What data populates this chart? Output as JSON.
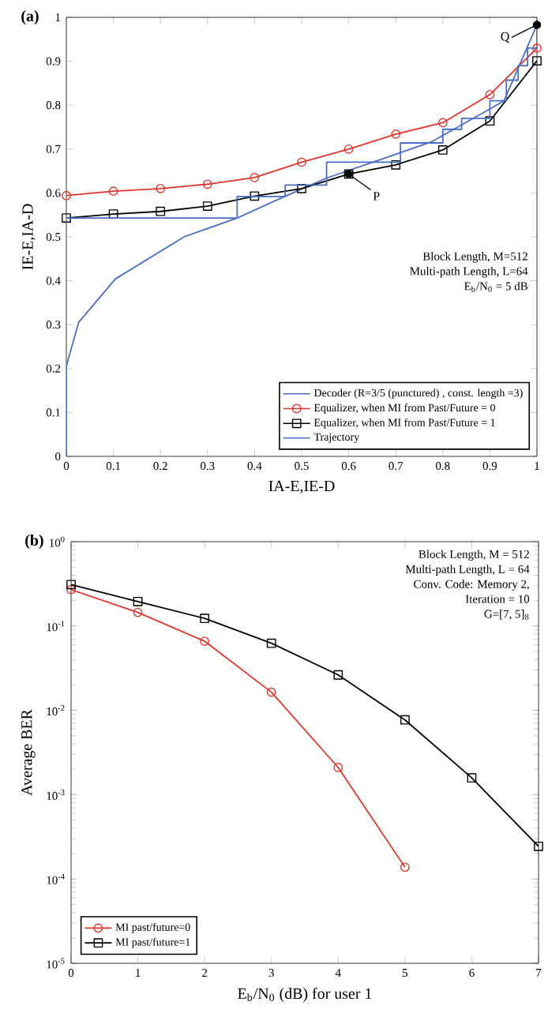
{
  "chart_data": [
    {
      "type": "line",
      "title": "(a)",
      "xlabel": "IA-E,IE-D",
      "ylabel": "IE-E,IA-D",
      "xlim": [
        0,
        1
      ],
      "ylim": [
        0,
        1
      ],
      "xticks": [
        0,
        0.1,
        0.2,
        0.3,
        0.4,
        0.5,
        0.6,
        0.7,
        0.8,
        0.9,
        1
      ],
      "yticks": [
        0,
        0.1,
        0.2,
        0.3,
        0.4,
        0.5,
        0.6,
        0.7,
        0.8,
        0.9,
        1
      ],
      "grid": false,
      "legend": "bottom right",
      "annotations": [
        "Block Length, M=512",
        "Multi-path Length, L=64",
        "E$_{b}$/N$_{0}$ = 5 dB",
        {
          "text": "P",
          "x": 0.6,
          "y": 0.643
        },
        {
          "text": "Q",
          "x": 1,
          "y": 0.983
        }
      ],
      "series": [
        {
          "name": "Decoder (R=3/5 (punctured) , const. length =3)",
          "color": "#4a6ec4",
          "marker": "none",
          "x": [
            0,
            0,
            0.026,
            0.104,
            0.25,
            0.363,
            0.464,
            0.553,
            0.665,
            0.777,
            0.906,
            0.93,
            1
          ],
          "values": [
            0,
            0.206,
            0.305,
            0.404,
            0.5,
            0.543,
            0.592,
            0.634,
            0.675,
            0.717,
            0.795,
            0.81,
            0.983
          ]
        },
        {
          "name": "Equalizer, when MI from Past/Future = 0",
          "color": "#e0352b",
          "marker": "circle",
          "x": [
            0,
            0.1,
            0.2,
            0.3,
            0.4,
            0.5,
            0.6,
            0.7,
            0.8,
            0.9,
            1
          ],
          "values": [
            0.594,
            0.604,
            0.61,
            0.62,
            0.635,
            0.67,
            0.7,
            0.734,
            0.76,
            0.824,
            0.93
          ]
        },
        {
          "name": "Equalizer, when MI from Past/Future = 1",
          "color": "#000000",
          "marker": "square",
          "x": [
            0,
            0.1,
            0.2,
            0.3,
            0.4,
            0.5,
            0.6,
            0.7,
            0.8,
            0.9,
            1
          ],
          "values": [
            0.543,
            0.552,
            0.558,
            0.57,
            0.593,
            0.61,
            0.643,
            0.664,
            0.698,
            0.764,
            0.901
          ]
        },
        {
          "name": "Trajectory",
          "color": "#4a6ec4",
          "marker": "none",
          "x": [
            0,
            0.363,
            0.363,
            0.465,
            0.465,
            0.553,
            0.553,
            0.71,
            0.71,
            0.8,
            0.8,
            0.84,
            0.84,
            0.9,
            0.9,
            0.935,
            0.935,
            0.96,
            0.96,
            0.98,
            0.98,
            1,
            1
          ],
          "values": [
            0.543,
            0.543,
            0.592,
            0.592,
            0.618,
            0.618,
            0.67,
            0.67,
            0.714,
            0.714,
            0.745,
            0.745,
            0.77,
            0.77,
            0.81,
            0.81,
            0.857,
            0.857,
            0.89,
            0.89,
            0.93,
            0.93,
            0.983
          ]
        }
      ]
    },
    {
      "type": "line",
      "title": "(b)",
      "xlabel": "E$_{b}$/N$_{0}$ (dB) for user 1",
      "ylabel": "Average BER",
      "xlim": [
        0,
        7
      ],
      "ylim": [
        1e-05,
        1
      ],
      "log": "y",
      "xticks": [
        0,
        1,
        2,
        3,
        4,
        5,
        6,
        7
      ],
      "yticks": [
        {
          "value": 1e-05,
          "label": "10$^{-5}$"
        },
        {
          "value": 0.0001,
          "label": "10$^{-4}$"
        },
        {
          "value": 0.001,
          "label": "10$^{-3}$"
        },
        {
          "value": 0.01,
          "label": "10$^{-2}$"
        },
        {
          "value": 0.1,
          "label": "10$^{-1}$"
        },
        {
          "value": 1,
          "label": "10$^{0}$"
        }
      ],
      "grid": false,
      "legend": "bottom left",
      "annotations": [
        "Block Length, M = 512",
        "Multi-path Length, L = 64",
        "Conv. Code: Memory 2,",
        "Iteration = 10",
        "G=[7, 5]$_{8}$"
      ],
      "series": [
        {
          "name": "MI past/future=0",
          "color": "#e0352b",
          "marker": "circle",
          "x": [
            0,
            1,
            2,
            3,
            4,
            5
          ],
          "values": [
            0.27,
            0.145,
            0.066,
            0.0164,
            0.0021,
            0.000138
          ]
        },
        {
          "name": "MI past/future=1",
          "color": "#000000",
          "marker": "square",
          "x": [
            0,
            1,
            2,
            3,
            4,
            5,
            6,
            7
          ],
          "values": [
            0.31,
            0.195,
            0.123,
            0.0624,
            0.0263,
            0.0077,
            0.00158,
            0.000244
          ]
        }
      ]
    }
  ]
}
